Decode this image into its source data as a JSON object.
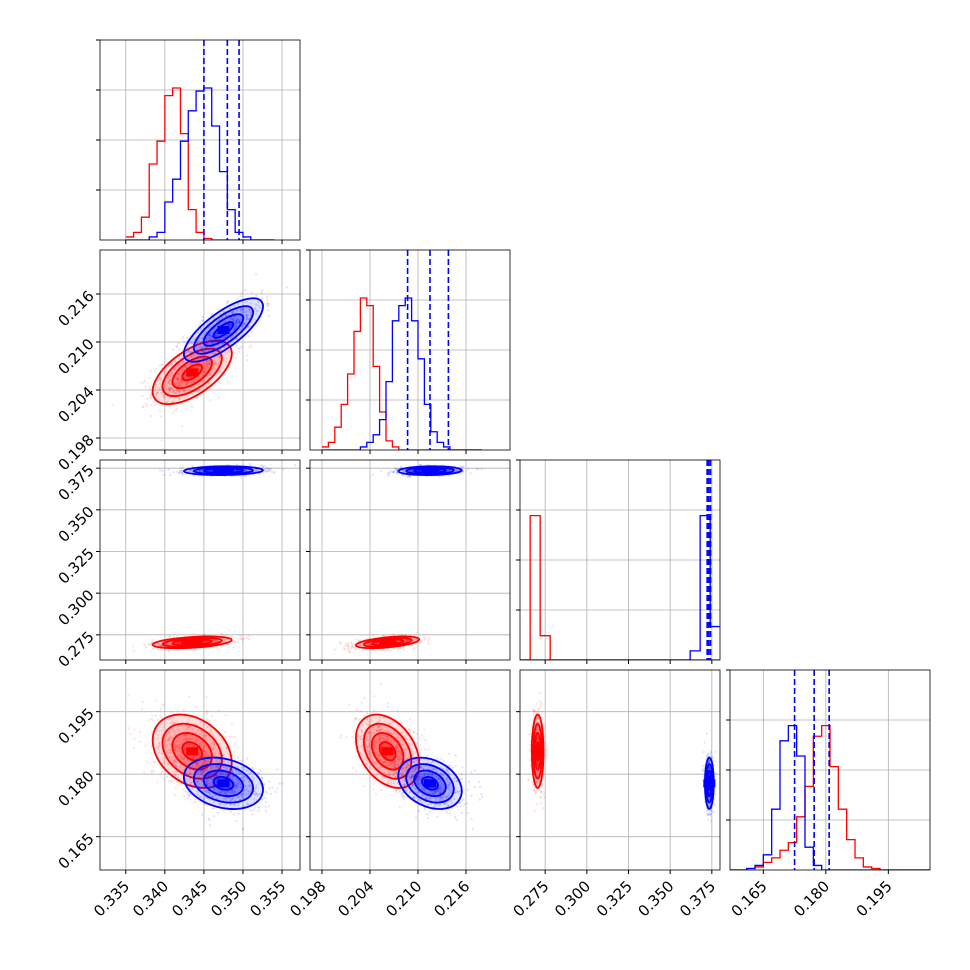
{
  "chart_data": {
    "type": "corner",
    "title": "",
    "grid": true,
    "colors": {
      "series_a": "#ff0000",
      "series_b": "#0000ff"
    },
    "series": [
      {
        "color": "#ff0000",
        "mean": [
          0.3435,
          0.2062,
          0.2705,
          0.1855
        ],
        "sd": [
          0.0023,
          0.0018,
          0.0016,
          0.004
        ],
        "corr": [
          [
            1,
            0.6,
            0.4,
            -0.3
          ],
          [
            0.6,
            1,
            0.5,
            -0.35
          ],
          [
            0.4,
            0.5,
            1,
            0
          ],
          [
            -0.3,
            -0.35,
            0,
            1
          ]
        ]
      },
      {
        "color": "#0000ff",
        "mean": [
          0.3475,
          0.2115,
          0.3735,
          0.1778
        ],
        "sd": [
          0.0023,
          0.0018,
          0.0012,
          0.0028
        ],
        "corr": [
          [
            1,
            0.75,
            0.1,
            -0.25
          ],
          [
            0.75,
            1,
            0.1,
            -0.3
          ],
          [
            0.1,
            0.1,
            1,
            0
          ],
          [
            -0.25,
            -0.3,
            0,
            1
          ]
        ]
      }
    ],
    "quantile_lines": [
      [
        0.345,
        0.348,
        0.3495
      ],
      [
        0.2087,
        0.2115,
        0.2138
      ],
      [
        0.3722,
        0.3732,
        0.3742
      ],
      [
        0.1725,
        0.1772,
        0.1808
      ]
    ],
    "axes_ranges": [
      [
        0.3317,
        0.3573
      ],
      [
        0.1965,
        0.2215
      ],
      [
        0.2599,
        0.3799
      ],
      [
        0.157,
        0.205
      ]
    ],
    "ticks": [
      [
        "0.335",
        "0.340",
        "0.345",
        "0.350",
        "0.355"
      ],
      [
        "0.198",
        "0.204",
        "0.210",
        "0.216"
      ],
      [
        "0.275",
        "0.300",
        "0.325",
        "0.350",
        "0.375"
      ],
      [
        "0.165",
        "0.180",
        "0.195"
      ]
    ],
    "diag_grid": [
      [
        0.335,
        0.34,
        0.345,
        0.35,
        0.355
      ],
      [
        0.198,
        0.204,
        0.21,
        0.216
      ],
      [
        0.275,
        0.3,
        0.325,
        0.35,
        0.375
      ],
      [
        0.165,
        0.18,
        0.195
      ]
    ],
    "hist_bins": [
      {
        "start": 0.335,
        "width": 0.001,
        "red": [
          0.02,
          0.05,
          0.15,
          0.5,
          0.65,
          0.95,
          1.0,
          0.7,
          0.2,
          0.05,
          0.01,
          0,
          0,
          0,
          0,
          0,
          0,
          0,
          0
        ],
        "blue": [
          0,
          0,
          0,
          0.02,
          0.05,
          0.25,
          0.4,
          0.65,
          0.85,
          0.98,
          1.0,
          0.75,
          0.45,
          0.2,
          0.05,
          0.02,
          0,
          0,
          0
        ]
      },
      {
        "start": 0.198,
        "width": 0.0008,
        "red": [
          0.02,
          0.05,
          0.15,
          0.3,
          0.5,
          0.78,
          1.0,
          0.95,
          0.55,
          0.25,
          0.06,
          0.02,
          0,
          0,
          0,
          0,
          0,
          0,
          0,
          0,
          0,
          0,
          0,
          0,
          0
        ],
        "blue": [
          0,
          0,
          0,
          0,
          0,
          0,
          0.02,
          0.05,
          0.1,
          0.2,
          0.45,
          0.85,
          0.95,
          1.0,
          0.85,
          0.6,
          0.3,
          0.12,
          0.05,
          0.02,
          0,
          0,
          0,
          0,
          0
        ]
      },
      {
        "start": 0.26,
        "width": 0.006,
        "red": [
          0.0,
          0.95,
          0.16,
          0,
          0,
          0,
          0,
          0,
          0,
          0,
          0,
          0,
          0,
          0,
          0,
          0,
          0,
          0,
          0,
          0
        ],
        "blue": [
          0,
          0,
          0,
          0,
          0,
          0,
          0,
          0,
          0,
          0,
          0,
          0,
          0,
          0,
          0,
          0,
          0,
          0.06,
          0.95,
          0.22
        ]
      },
      {
        "start": 0.157,
        "width": 0.002,
        "red": [
          0,
          0,
          0.01,
          0.02,
          0.05,
          0.08,
          0.13,
          0.18,
          0.35,
          0.55,
          0.88,
          0.95,
          0.68,
          0.4,
          0.2,
          0.08,
          0.02,
          0.01,
          0,
          0,
          0,
          0,
          0,
          0
        ],
        "blue": [
          0,
          0,
          0.01,
          0.03,
          0.1,
          0.4,
          0.85,
          0.95,
          0.75,
          0.15,
          0.03,
          0,
          0,
          0,
          0,
          0,
          0,
          0,
          0,
          0,
          0,
          0,
          0,
          0
        ]
      }
    ]
  }
}
